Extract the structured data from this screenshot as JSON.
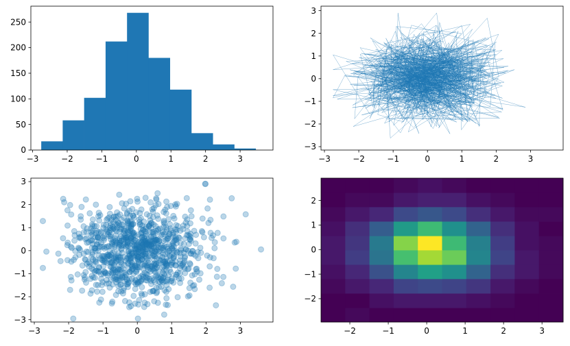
{
  "chart_data": [
    {
      "type": "bar",
      "subtype": "histogram",
      "color": "#1f77b4",
      "bin_edges": [
        -2.75,
        -2.13,
        -1.51,
        -0.89,
        -0.27,
        0.35,
        0.97,
        1.59,
        2.21,
        2.83,
        3.45
      ],
      "values": [
        17,
        58,
        102,
        212,
        268,
        180,
        118,
        33,
        11,
        3
      ],
      "xlim": [
        -3.05,
        3.95
      ],
      "ylim": [
        0,
        281
      ],
      "xticks": [
        -3,
        -2,
        -1,
        0,
        1,
        2,
        3
      ],
      "yticks": [
        0,
        50,
        100,
        150,
        200,
        250
      ]
    },
    {
      "type": "line",
      "color": "#1f77b4",
      "line_width_note": "very thin line connecting ~1000 random normal points",
      "x_range": [
        -2.75,
        3.65
      ],
      "y_range": [
        -2.85,
        2.9
      ],
      "xlim": [
        -3.1,
        3.95
      ],
      "ylim": [
        -3.15,
        3.2
      ],
      "xticks": [
        -3,
        -2,
        -1,
        0,
        1,
        2,
        3
      ],
      "yticks": [
        -3,
        -2,
        -1,
        0,
        1,
        2,
        3
      ]
    },
    {
      "type": "scatter",
      "color": "#1f77b4",
      "alpha": 0.3,
      "x_range": [
        -2.75,
        3.6
      ],
      "y_range": [
        -2.95,
        2.9
      ],
      "xlim": [
        -3.1,
        3.95
      ],
      "ylim": [
        -3.1,
        3.15
      ],
      "xticks": [
        -3,
        -2,
        -1,
        0,
        1,
        2,
        3
      ],
      "yticks": [
        -3,
        -2,
        -1,
        0,
        1,
        2,
        3
      ]
    },
    {
      "type": "heatmap",
      "colormap": "viridis",
      "x_edges": [
        -2.75,
        -2.12,
        -1.49,
        -0.86,
        -0.23,
        0.4,
        1.03,
        1.66,
        2.29,
        2.92,
        3.55
      ],
      "y_edges": [
        -2.95,
        -2.37,
        -1.78,
        -1.19,
        -0.61,
        -0.02,
        0.56,
        1.15,
        1.74,
        2.32,
        2.91
      ],
      "counts_rows_bottom_to_top": [
        [
          0,
          1,
          0,
          0,
          0,
          0,
          0,
          0,
          0,
          0
        ],
        [
          0,
          0,
          2,
          3,
          3,
          3,
          2,
          1,
          0,
          0
        ],
        [
          1,
          3,
          5,
          9,
          10,
          9,
          7,
          3,
          1,
          0
        ],
        [
          2,
          5,
          11,
          20,
          25,
          22,
          14,
          6,
          3,
          1
        ],
        [
          3,
          8,
          17,
          31,
          38,
          34,
          20,
          9,
          3,
          1
        ],
        [
          3,
          7,
          18,
          36,
          44,
          30,
          19,
          8,
          2,
          1
        ],
        [
          2,
          6,
          13,
          24,
          30,
          22,
          14,
          6,
          2,
          0
        ],
        [
          1,
          3,
          5,
          10,
          12,
          10,
          6,
          3,
          1,
          1
        ],
        [
          0,
          1,
          1,
          3,
          4,
          4,
          2,
          1,
          0,
          0
        ],
        [
          0,
          0,
          0,
          1,
          2,
          1,
          0,
          0,
          0,
          0
        ]
      ],
      "xticks": [
        -2,
        -1,
        0,
        1,
        2,
        3
      ],
      "yticks": [
        -2,
        -1,
        0,
        1,
        2
      ]
    }
  ]
}
